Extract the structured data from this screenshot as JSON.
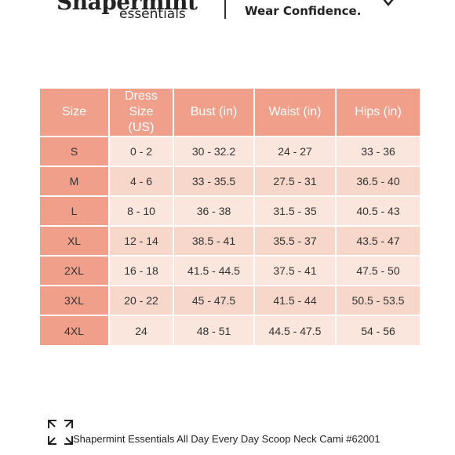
{
  "header": {
    "brand_name": "Shapermint",
    "brand_sub": "essentials",
    "tagline": "Wear Confidence."
  },
  "size_chart": {
    "columns": [
      "Size",
      "Dress Size (US)",
      "Bust (in)",
      "Waist (in)",
      "Hips (in)"
    ],
    "rows": [
      [
        "S",
        "0 - 2",
        "30 - 32.2",
        "24 - 27",
        "33 - 36"
      ],
      [
        "M",
        "4 - 6",
        "33 - 35.5",
        "27.5 - 31",
        "36.5 - 40"
      ],
      [
        "L",
        "8 - 10",
        "36 - 38",
        "31.5 - 35",
        "40.5 - 43"
      ],
      [
        "XL",
        "12 - 14",
        "38.5 - 41",
        "35.5 - 37",
        "43.5 - 47"
      ],
      [
        "2XL",
        "16 - 18",
        "41.5 - 44.5",
        "37.5 - 41",
        "47.5 - 50"
      ],
      [
        "3XL",
        "20 - 22",
        "45 - 47.5",
        "41.5 - 44",
        "50.5 - 53.5"
      ],
      [
        "4XL",
        "24",
        "48 - 51",
        "44.5 - 47.5",
        "54 - 56"
      ]
    ]
  },
  "caption": "Shapermint Essentials All Day Every Day Scoop Neck Cami #62001",
  "icons": {
    "expand": "expand-icon",
    "heart": "heart-icon"
  },
  "colors": {
    "header_fill": "#f0a08a",
    "row_light": "#fbe6dd",
    "row_dark": "#f7d7ca"
  }
}
